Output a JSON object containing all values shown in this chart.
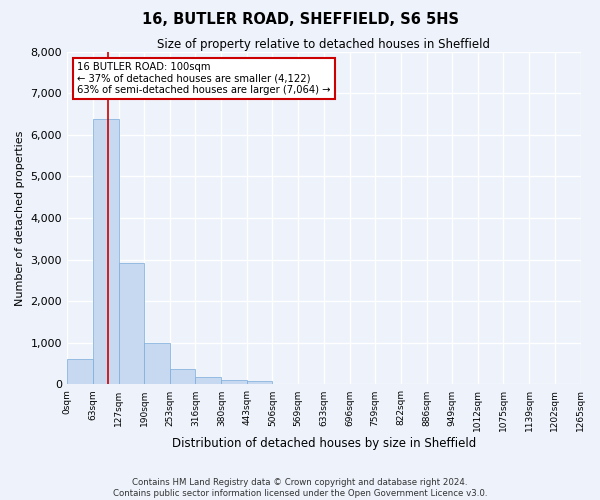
{
  "title": "16, BUTLER ROAD, SHEFFIELD, S6 5HS",
  "subtitle": "Size of property relative to detached houses in Sheffield",
  "xlabel": "Distribution of detached houses by size in Sheffield",
  "ylabel": "Number of detached properties",
  "bar_color": "#c6d9f0",
  "bar_edge_color": "#7aabdb",
  "background_color": "#edf2fb",
  "grid_color": "#ffffff",
  "property_label": "16 BUTLER ROAD: 100sqm",
  "annotation_line1": "← 37% of detached houses are smaller (4,122)",
  "annotation_line2": "63% of semi-detached houses are larger (7,064) →",
  "footer_line1": "Contains HM Land Registry data © Crown copyright and database right 2024.",
  "footer_line2": "Contains public sector information licensed under the Open Government Licence v3.0.",
  "bin_edges": [
    0,
    63,
    127,
    190,
    253,
    316,
    380,
    443,
    506,
    569,
    633,
    696,
    759,
    822,
    886,
    949,
    1012,
    1075,
    1139,
    1202,
    1265
  ],
  "bin_labels": [
    "0sqm",
    "63sqm",
    "127sqm",
    "190sqm",
    "253sqm",
    "316sqm",
    "380sqm",
    "443sqm",
    "506sqm",
    "569sqm",
    "633sqm",
    "696sqm",
    "759sqm",
    "822sqm",
    "886sqm",
    "949sqm",
    "1012sqm",
    "1075sqm",
    "1139sqm",
    "1202sqm",
    "1265sqm"
  ],
  "bar_heights": [
    620,
    6380,
    2920,
    1000,
    370,
    170,
    110,
    80,
    0,
    0,
    0,
    0,
    0,
    0,
    0,
    0,
    0,
    0,
    0,
    0
  ],
  "ylim": [
    0,
    8000
  ],
  "yticks": [
    0,
    1000,
    2000,
    3000,
    4000,
    5000,
    6000,
    7000,
    8000
  ],
  "red_line_x": 100,
  "red_line_color": "#cc0000",
  "annotation_box_color": "#ffffff",
  "annotation_box_edge_color": "#cc0000"
}
